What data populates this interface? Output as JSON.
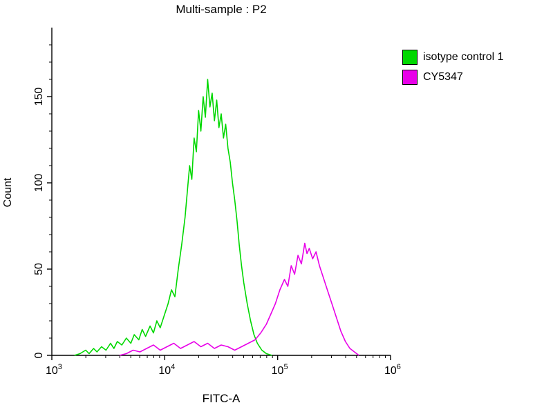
{
  "chart_data": {
    "type": "line",
    "title": "Multi-sample : P2",
    "xlabel": "FITC-A",
    "ylabel": "Count",
    "x_scale": "log10",
    "xlim_log10": [
      3,
      6
    ],
    "x_major_tick_exponents": [
      3,
      4,
      5,
      6
    ],
    "ylim": [
      0,
      190
    ],
    "y_ticks": [
      0,
      50,
      100,
      150
    ],
    "y_minor_step": 10,
    "grid": "off",
    "legend_position": "outside-right-top",
    "series": [
      {
        "name": "isotype control 1",
        "color": "#00d800",
        "points": [
          [
            3.2,
            0
          ],
          [
            3.25,
            1
          ],
          [
            3.3,
            3
          ],
          [
            3.33,
            1
          ],
          [
            3.37,
            4
          ],
          [
            3.4,
            2
          ],
          [
            3.44,
            5
          ],
          [
            3.48,
            3
          ],
          [
            3.52,
            7
          ],
          [
            3.55,
            4
          ],
          [
            3.58,
            8
          ],
          [
            3.62,
            6
          ],
          [
            3.66,
            10
          ],
          [
            3.7,
            7
          ],
          [
            3.73,
            12
          ],
          [
            3.77,
            9
          ],
          [
            3.8,
            15
          ],
          [
            3.83,
            11
          ],
          [
            3.87,
            17
          ],
          [
            3.9,
            13
          ],
          [
            3.93,
            20
          ],
          [
            3.96,
            16
          ],
          [
            4.0,
            24
          ],
          [
            4.03,
            30
          ],
          [
            4.06,
            38
          ],
          [
            4.09,
            34
          ],
          [
            4.12,
            50
          ],
          [
            4.15,
            64
          ],
          [
            4.18,
            80
          ],
          [
            4.2,
            95
          ],
          [
            4.22,
            110
          ],
          [
            4.24,
            102
          ],
          [
            4.26,
            126
          ],
          [
            4.28,
            118
          ],
          [
            4.3,
            142
          ],
          [
            4.32,
            130
          ],
          [
            4.34,
            150
          ],
          [
            4.36,
            138
          ],
          [
            4.38,
            160
          ],
          [
            4.4,
            144
          ],
          [
            4.42,
            152
          ],
          [
            4.44,
            136
          ],
          [
            4.46,
            148
          ],
          [
            4.48,
            132
          ],
          [
            4.5,
            140
          ],
          [
            4.52,
            126
          ],
          [
            4.54,
            134
          ],
          [
            4.56,
            120
          ],
          [
            4.58,
            112
          ],
          [
            4.6,
            100
          ],
          [
            4.62,
            90
          ],
          [
            4.64,
            78
          ],
          [
            4.66,
            64
          ],
          [
            4.68,
            52
          ],
          [
            4.7,
            42
          ],
          [
            4.73,
            30
          ],
          [
            4.76,
            20
          ],
          [
            4.79,
            12
          ],
          [
            4.82,
            7
          ],
          [
            4.86,
            3
          ],
          [
            4.9,
            1
          ],
          [
            4.95,
            0
          ]
        ]
      },
      {
        "name": "CY5347",
        "color": "#e800e8",
        "points": [
          [
            3.6,
            0
          ],
          [
            3.66,
            1
          ],
          [
            3.72,
            3
          ],
          [
            3.78,
            2
          ],
          [
            3.84,
            4
          ],
          [
            3.9,
            6
          ],
          [
            3.96,
            3
          ],
          [
            4.02,
            5
          ],
          [
            4.08,
            7
          ],
          [
            4.14,
            4
          ],
          [
            4.2,
            6
          ],
          [
            4.26,
            8
          ],
          [
            4.32,
            5
          ],
          [
            4.38,
            7
          ],
          [
            4.44,
            4
          ],
          [
            4.5,
            6
          ],
          [
            4.56,
            5
          ],
          [
            4.62,
            3
          ],
          [
            4.68,
            5
          ],
          [
            4.74,
            7
          ],
          [
            4.8,
            9
          ],
          [
            4.85,
            13
          ],
          [
            4.9,
            18
          ],
          [
            4.94,
            24
          ],
          [
            4.98,
            30
          ],
          [
            5.02,
            38
          ],
          [
            5.06,
            44
          ],
          [
            5.09,
            40
          ],
          [
            5.12,
            52
          ],
          [
            5.15,
            47
          ],
          [
            5.18,
            58
          ],
          [
            5.21,
            53
          ],
          [
            5.24,
            65
          ],
          [
            5.26,
            59
          ],
          [
            5.28,
            62
          ],
          [
            5.31,
            56
          ],
          [
            5.34,
            60
          ],
          [
            5.37,
            52
          ],
          [
            5.4,
            46
          ],
          [
            5.44,
            38
          ],
          [
            5.48,
            30
          ],
          [
            5.52,
            22
          ],
          [
            5.56,
            14
          ],
          [
            5.6,
            8
          ],
          [
            5.64,
            4
          ],
          [
            5.68,
            2
          ],
          [
            5.72,
            0
          ]
        ]
      }
    ]
  }
}
